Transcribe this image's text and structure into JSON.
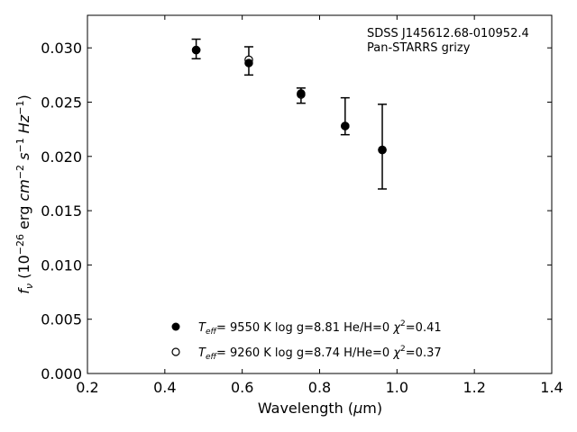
{
  "chart_data": {
    "type": "scatter",
    "title": "",
    "annotation": {
      "line1": "SDSS J145612.68-010952.4",
      "line2": "Pan-STARRS grizy"
    },
    "xlabel": "Wavelength (μm)",
    "ylabel": "f_ν (10^-26 erg cm^-2 s^-1 Hz^-1)",
    "xlim": [
      0.2,
      1.4
    ],
    "ylim": [
      0.0,
      0.033
    ],
    "x_ticks": [
      0.2,
      0.4,
      0.6,
      0.8,
      1.0,
      1.2,
      1.4
    ],
    "x_tick_labels": [
      "0.2",
      "0.4",
      "0.6",
      "0.8",
      "1.0",
      "1.2",
      "1.4"
    ],
    "y_ticks": [
      0.0,
      0.005,
      0.01,
      0.015,
      0.02,
      0.025,
      0.03
    ],
    "y_tick_labels": [
      "0.000",
      "0.005",
      "0.010",
      "0.015",
      "0.020",
      "0.025",
      "0.030"
    ],
    "grid": false,
    "legend_position": "bottom-center",
    "observed": {
      "x": [
        0.481,
        0.617,
        0.752,
        0.866,
        0.962
      ],
      "y": [
        0.0299,
        0.0288,
        0.0256,
        0.0237,
        0.0209
      ],
      "yerr": [
        0.0009,
        0.0013,
        0.0007,
        0.0017,
        0.0039
      ]
    },
    "series": [
      {
        "name": "T_eff= 9550 K log g=8.81 He/H=0 χ²=0.41",
        "marker": "filled-circle",
        "x": [
          0.481,
          0.617,
          0.752,
          0.866,
          0.962
        ],
        "y": [
          0.0298,
          0.0286,
          0.0258,
          0.0228,
          0.0206
        ]
      },
      {
        "name": "T_eff= 9260 K log g=8.74 H/He=0 χ²=0.37",
        "marker": "open-circle",
        "x": [
          0.481,
          0.617,
          0.752,
          0.866,
          0.962
        ],
        "y": [
          0.0298,
          0.0289,
          0.0257,
          0.0228,
          0.0206
        ]
      }
    ],
    "legend": [
      {
        "teff": "9550 K",
        "logg": "log g=8.81",
        "comp": "He/H=0",
        "chi": "=0.41"
      },
      {
        "teff": "9260 K",
        "logg": "log g=8.74",
        "comp": "H/He=0",
        "chi": "=0.37"
      }
    ],
    "colors": {
      "marker": "#000000",
      "axes": "#000000",
      "background": "#ffffff"
    }
  }
}
